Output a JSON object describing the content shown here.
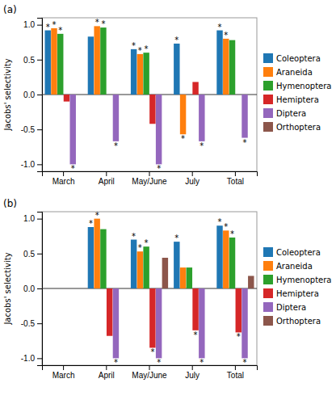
{
  "chart_data": [
    {
      "type": "bar",
      "title": "(a)",
      "categories": [
        "March",
        "April",
        "May/June",
        "July",
        "Total"
      ],
      "series": [
        {
          "name": "Coleoptera",
          "values": [
            0.92,
            0.83,
            0.65,
            0.73,
            0.92
          ]
        },
        {
          "name": "Araneida",
          "values": [
            0.95,
            0.98,
            0.58,
            -0.57,
            0.8
          ]
        },
        {
          "name": "Hymenoptera",
          "values": [
            0.87,
            0.96,
            0.6,
            null,
            0.78
          ]
        },
        {
          "name": "Hemiptera",
          "values": [
            -0.1,
            null,
            -0.42,
            0.18,
            null
          ]
        },
        {
          "name": "Diptera",
          "values": [
            -1.0,
            -0.67,
            -1.0,
            -0.67,
            -0.62
          ]
        },
        {
          "name": "Orthoptera",
          "values": [
            null,
            null,
            null,
            null,
            null
          ]
        }
      ],
      "annotations": [
        {
          "text": "*",
          "series": "Coleoptera",
          "category": "March"
        },
        {
          "text": "*",
          "series": "Coleoptera",
          "category": "May/June"
        },
        {
          "text": "*",
          "series": "Coleoptera",
          "category": "July"
        },
        {
          "text": "*",
          "series": "Coleoptera",
          "category": "Total"
        },
        {
          "text": "*",
          "series": "Araneida",
          "category": "March"
        },
        {
          "text": "*",
          "series": "Araneida",
          "category": "April"
        },
        {
          "text": "*",
          "series": "Araneida",
          "category": "May/June"
        },
        {
          "text": "*",
          "series": "Araneida",
          "category": "July"
        },
        {
          "text": "*",
          "series": "Araneida",
          "category": "Total"
        },
        {
          "text": "*",
          "series": "Hymenoptera",
          "category": "March"
        },
        {
          "text": "*",
          "series": "Hymenoptera",
          "category": "April"
        },
        {
          "text": "*",
          "series": "Hymenoptera",
          "category": "May/June"
        },
        {
          "text": "*",
          "series": "Diptera",
          "category": "March"
        },
        {
          "text": "*",
          "series": "Diptera",
          "category": "April"
        },
        {
          "text": "*",
          "series": "Diptera",
          "category": "May/June"
        },
        {
          "text": "*",
          "series": "Diptera",
          "category": "July"
        },
        {
          "text": "*",
          "series": "Diptera",
          "category": "Total"
        }
      ],
      "y_label": "Jacobs' selectivity",
      "ylim": [
        -1.1,
        1.1
      ],
      "yticks": [
        {
          "value": -1.0,
          "label": "-1.0"
        },
        {
          "value": -0.5,
          "label": "-0.5"
        },
        {
          "value": 0.0,
          "label": "0.0"
        },
        {
          "value": 0.5,
          "label": "0.5"
        },
        {
          "value": 1.0,
          "label": "1.0"
        }
      ],
      "grid": false,
      "legend": "right"
    },
    {
      "type": "bar",
      "title": "(b)",
      "categories": [
        "March",
        "April",
        "May/June",
        "July",
        "Total"
      ],
      "series": [
        {
          "name": "Coleoptera",
          "values": [
            null,
            0.88,
            0.7,
            0.67,
            0.9
          ]
        },
        {
          "name": "Araneida",
          "values": [
            null,
            1.0,
            0.53,
            0.3,
            0.83
          ]
        },
        {
          "name": "Hymenoptera",
          "values": [
            null,
            0.85,
            0.6,
            0.3,
            0.73
          ]
        },
        {
          "name": "Hemiptera",
          "values": [
            null,
            -0.68,
            -0.85,
            -0.6,
            -0.63
          ]
        },
        {
          "name": "Diptera",
          "values": [
            null,
            -1.0,
            -1.0,
            -1.0,
            -1.0
          ]
        },
        {
          "name": "Orthoptera",
          "values": [
            null,
            null,
            0.44,
            null,
            0.18
          ]
        }
      ],
      "annotations": [
        {
          "text": "*",
          "series": "Coleoptera",
          "category": "April"
        },
        {
          "text": "*",
          "series": "Coleoptera",
          "category": "May/June"
        },
        {
          "text": "*",
          "series": "Coleoptera",
          "category": "July"
        },
        {
          "text": "*",
          "series": "Coleoptera",
          "category": "Total"
        },
        {
          "text": "*",
          "series": "Araneida",
          "category": "April"
        },
        {
          "text": "*",
          "series": "Araneida",
          "category": "May/June"
        },
        {
          "text": "*",
          "series": "Araneida",
          "category": "Total"
        },
        {
          "text": "*",
          "series": "Hymenoptera",
          "category": "May/June"
        },
        {
          "text": "*",
          "series": "Hymenoptera",
          "category": "Total"
        },
        {
          "text": "*",
          "series": "Hemiptera",
          "category": "May/June"
        },
        {
          "text": "*",
          "series": "Hemiptera",
          "category": "July"
        },
        {
          "text": "*",
          "series": "Hemiptera",
          "category": "Total"
        },
        {
          "text": "*",
          "series": "Diptera",
          "category": "April"
        },
        {
          "text": "*",
          "series": "Diptera",
          "category": "May/June"
        },
        {
          "text": "*",
          "series": "Diptera",
          "category": "July"
        },
        {
          "text": "*",
          "series": "Diptera",
          "category": "Total"
        }
      ],
      "y_label": "Jacobs' selectivity",
      "ylim": [
        -1.1,
        1.1
      ],
      "yticks": [
        {
          "value": -1.0,
          "label": "-1.0"
        },
        {
          "value": -0.5,
          "label": "-0.5"
        },
        {
          "value": 0.0,
          "label": "0.0"
        },
        {
          "value": 0.5,
          "label": "0.5"
        },
        {
          "value": 1.0,
          "label": "1.0"
        }
      ],
      "grid": false,
      "legend": "right"
    }
  ]
}
